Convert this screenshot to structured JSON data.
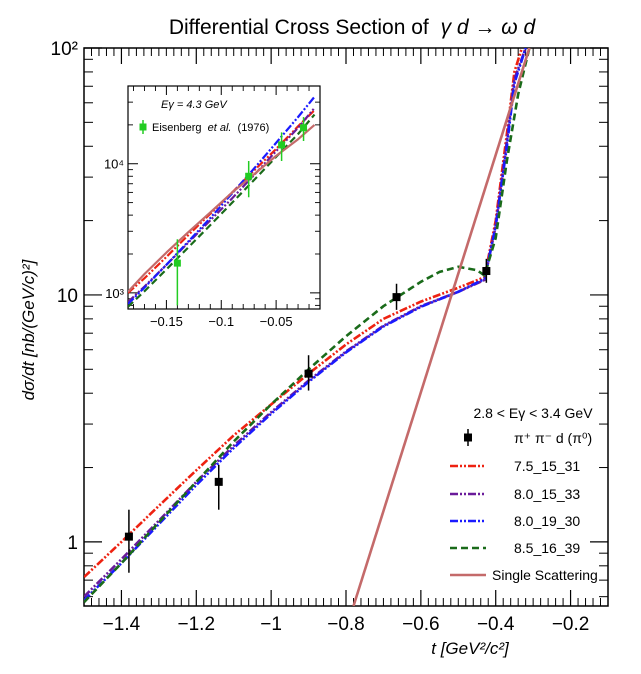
{
  "chart_data": {
    "type": "line",
    "title_prefix": "Differential Cross Section of",
    "title_reaction": "γ d → ω d",
    "xlabel": "t [GeV²/c²]",
    "ylabel": "dσ/dt [nb/(GeV/c)²]",
    "xlim": [
      -1.5,
      -0.1
    ],
    "ylim": [
      0.55,
      100
    ],
    "y_scale": "log",
    "x_ticks": [
      "−1.4",
      "−1.2",
      "−1",
      "−0.8",
      "−0.6",
      "−0.4",
      "−0.2"
    ],
    "x_tick_values": [
      -1.4,
      -1.2,
      -1.0,
      -0.8,
      -0.6,
      -0.4,
      -0.2
    ],
    "y_ticks": [
      "1",
      "10",
      "10²"
    ],
    "y_tick_values": [
      1,
      10,
      100
    ],
    "legend": {
      "header": "2.8 < Eγ < 3.4 GeV",
      "location": "lower-right",
      "entries": [
        "π⁺ π⁻ d (π⁰)",
        "7.5_15_31",
        "8.0_15_33",
        "8.0_19_30",
        "8.5_16_39",
        "Single Scattering"
      ]
    },
    "data_points": {
      "name": "π⁺ π⁻ d (π⁰)",
      "color": "#000000",
      "x": [
        -1.38,
        -1.14,
        -0.9,
        -0.665,
        -0.425
      ],
      "y": [
        1.05,
        1.75,
        4.8,
        9.8,
        12.5
      ],
      "err_low": [
        0.3,
        0.4,
        0.7,
        1.1,
        1.3
      ],
      "err_high": [
        0.3,
        0.3,
        0.9,
        1.3,
        1.5
      ]
    },
    "series": [
      {
        "name": "7.5_15_31",
        "color": "#ee2211",
        "dash": "dashdotdot",
        "x": [
          -1.5,
          -1.4,
          -1.3,
          -1.2,
          -1.1,
          -1.0,
          -0.9,
          -0.8,
          -0.7,
          -0.6,
          -0.5,
          -0.43,
          -0.4,
          -0.37,
          -0.35,
          -0.33
        ],
        "y": [
          0.72,
          1.0,
          1.4,
          1.95,
          2.7,
          3.6,
          4.8,
          6.3,
          8.0,
          9.4,
          10.7,
          11.8,
          20,
          45,
          80,
          100
        ]
      },
      {
        "name": "8.0_15_33",
        "color": "#6a1b9a",
        "dash": "dashdotdot",
        "x": [
          -1.5,
          -1.4,
          -1.3,
          -1.2,
          -1.1,
          -1.0,
          -0.9,
          -0.8,
          -0.7,
          -0.6,
          -0.5,
          -0.43,
          -0.4,
          -0.37,
          -0.35,
          -0.32
        ],
        "y": [
          0.6,
          0.85,
          1.22,
          1.75,
          2.45,
          3.35,
          4.5,
          5.9,
          7.5,
          9.0,
          10.3,
          11.5,
          19,
          42,
          75,
          100
        ]
      },
      {
        "name": "8.0_19_30",
        "color": "#1a1aff",
        "dash": "dashdotdot",
        "x": [
          -1.5,
          -1.4,
          -1.3,
          -1.2,
          -1.1,
          -1.0,
          -0.9,
          -0.8,
          -0.7,
          -0.6,
          -0.5,
          -0.43,
          -0.4,
          -0.37,
          -0.35,
          -0.32
        ],
        "y": [
          0.58,
          0.82,
          1.18,
          1.7,
          2.4,
          3.3,
          4.45,
          5.85,
          7.45,
          8.95,
          10.3,
          11.6,
          19,
          40,
          72,
          100
        ]
      },
      {
        "name": "8.5_16_39",
        "color": "#1a6b1a",
        "dash": "dashed",
        "x": [
          -1.5,
          -1.4,
          -1.3,
          -1.2,
          -1.1,
          -1.0,
          -0.9,
          -0.8,
          -0.7,
          -0.6,
          -0.55,
          -0.5,
          -0.45,
          -0.43,
          -0.4,
          -0.37,
          -0.34,
          -0.31
        ],
        "y": [
          0.57,
          0.82,
          1.2,
          1.75,
          2.55,
          3.6,
          5.0,
          6.8,
          9.0,
          11.3,
          12.4,
          13.0,
          12.6,
          12.0,
          17,
          35,
          65,
          100
        ]
      },
      {
        "name": "Single Scattering",
        "color": "#c46a6a",
        "dash": "solid",
        "x": [
          -0.78,
          -0.31
        ],
        "y": [
          0.55,
          100
        ]
      }
    ],
    "inset": {
      "label_energy": "Eγ = 4.3 GeV",
      "legend_entry_prefix": "Eisenberg",
      "legend_entry_italic": "et al.",
      "legend_entry_suffix": "(1976)",
      "xlim": [
        -0.185,
        -0.01
      ],
      "ylim": [
        750,
        40000
      ],
      "y_scale": "log",
      "x_ticks": [
        "−0.15",
        "−0.1",
        "−0.05"
      ],
      "x_tick_values": [
        -0.15,
        -0.1,
        -0.05
      ],
      "y_ticks": [
        "10³",
        "10⁴"
      ],
      "y_tick_values": [
        1000,
        10000
      ],
      "data_points": {
        "color": "#22cc22",
        "x": [
          -0.14,
          -0.075,
          -0.045,
          -0.025
        ],
        "y": [
          1700,
          8000,
          14000,
          19000
        ],
        "err_low": [
          900,
          2500,
          3500,
          4000
        ],
        "err_high": [
          900,
          2500,
          3500,
          4000
        ]
      },
      "series": [
        {
          "name": "7.5_15_31",
          "color": "#ee2211",
          "dash": "dashdotdot",
          "x": [
            -0.185,
            -0.17,
            -0.15,
            -0.13,
            -0.11,
            -0.09,
            -0.07,
            -0.05,
            -0.03,
            -0.015
          ],
          "y": [
            1000,
            1300,
            1900,
            2800,
            4100,
            6000,
            8900,
            13000,
            19500,
            26000
          ]
        },
        {
          "name": "8.0_15_33",
          "color": "#6a1b9a",
          "dash": "dashdotdot",
          "x": [
            -0.185,
            -0.17,
            -0.15,
            -0.13,
            -0.11,
            -0.09,
            -0.07,
            -0.05,
            -0.03,
            -0.015
          ],
          "y": [
            850,
            1120,
            1650,
            2450,
            3650,
            5400,
            8200,
            12500,
            19000,
            27000
          ]
        },
        {
          "name": "8.0_19_30",
          "color": "#1a1aff",
          "dash": "dashdotdot",
          "x": [
            -0.185,
            -0.17,
            -0.15,
            -0.13,
            -0.11,
            -0.09,
            -0.07,
            -0.05,
            -0.03,
            -0.015
          ],
          "y": [
            820,
            1100,
            1650,
            2500,
            3800,
            5900,
            9200,
            14500,
            23000,
            33000
          ]
        },
        {
          "name": "8.5_16_39",
          "color": "#1a6b1a",
          "dash": "dashed",
          "x": [
            -0.185,
            -0.17,
            -0.15,
            -0.13,
            -0.11,
            -0.09,
            -0.07,
            -0.05,
            -0.03,
            -0.015
          ],
          "y": [
            780,
            1030,
            1520,
            2250,
            3350,
            5000,
            7500,
            11300,
            17000,
            24000
          ]
        },
        {
          "name": "Single Scattering",
          "color": "#c46a6a",
          "dash": "solid",
          "x": [
            -0.185,
            -0.17,
            -0.15,
            -0.13,
            -0.11,
            -0.09,
            -0.07,
            -0.05,
            -0.03,
            -0.015
          ],
          "y": [
            1020,
            1400,
            2050,
            2950,
            4200,
            6000,
            8300,
            11500,
            15500,
            20000
          ]
        }
      ]
    }
  }
}
